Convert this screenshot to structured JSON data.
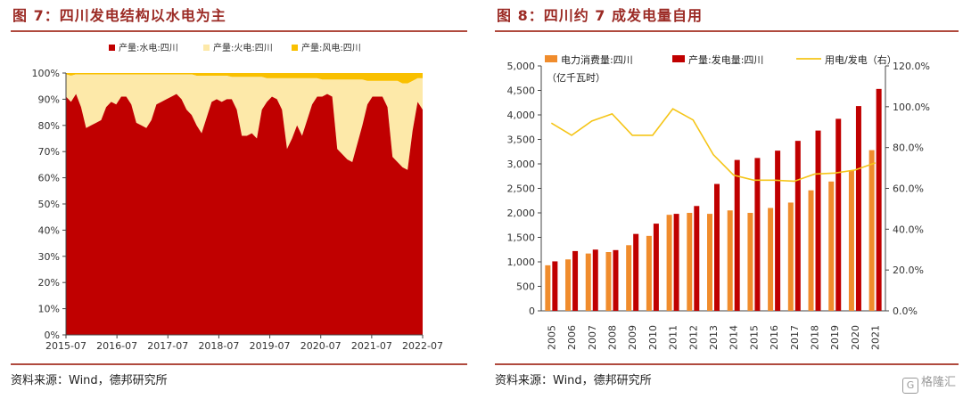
{
  "left": {
    "title": "图 7：四川发电结构以水电为主",
    "source": "资料来源：Wind，德邦研究所",
    "colors": {
      "hydro": "#c00000",
      "thermal": "#fde9a9",
      "wind": "#f9c000"
    },
    "chart_data": {
      "type": "area",
      "stacked": true,
      "percent": true,
      "title": "",
      "xlabel": "",
      "ylabel": "",
      "ylim": [
        0,
        100
      ],
      "yticks": [
        "0%",
        "10%",
        "20%",
        "30%",
        "40%",
        "50%",
        "60%",
        "70%",
        "80%",
        "90%",
        "100%"
      ],
      "xticks": [
        "2015-07",
        "2016-07",
        "2017-07",
        "2018-07",
        "2019-07",
        "2020-07",
        "2021-07",
        "2022-07"
      ],
      "series": [
        {
          "name": "产量:水电:四川",
          "values": [
            91,
            89,
            92,
            87,
            79,
            80,
            81,
            82,
            87,
            89,
            88,
            91,
            91,
            88,
            81,
            80,
            79,
            82,
            88,
            89,
            90,
            91,
            92,
            90,
            86,
            84,
            80,
            77,
            83,
            89,
            90,
            89,
            90,
            90,
            86,
            76,
            76,
            77,
            75,
            86,
            89,
            91,
            90,
            86,
            71,
            75,
            80,
            76,
            82,
            88,
            91,
            91,
            92,
            91,
            71,
            69,
            67,
            66,
            73,
            80,
            88,
            91,
            91,
            91,
            87,
            68,
            66,
            64,
            63,
            78,
            89,
            86
          ]
        },
        {
          "name": "产量:火电:四川",
          "values": [
            8.5,
            10,
            7.5,
            12.5,
            20.5,
            19.5,
            18.5,
            17.5,
            12.5,
            10.5,
            11.5,
            8.5,
            8.5,
            11.5,
            18.5,
            19.5,
            20.5,
            17.5,
            11.5,
            10.5,
            9.5,
            8.5,
            7.5,
            9.5,
            13.5,
            15.5,
            19,
            22,
            16,
            10,
            9,
            10,
            9,
            8.5,
            12.5,
            22.5,
            22.5,
            21.5,
            23.5,
            12.5,
            9,
            7,
            8,
            12,
            27,
            23,
            18,
            22,
            16,
            10,
            7,
            6.5,
            5.5,
            6.5,
            26.5,
            28.5,
            30.5,
            31.5,
            24.5,
            17.5,
            9,
            6,
            6,
            6,
            10,
            29,
            31,
            32,
            33,
            19,
            9,
            12
          ]
        },
        {
          "name": "产量:风电:四川",
          "values": [
            0.5,
            1,
            0.5,
            0.5,
            0.5,
            0.5,
            0.5,
            0.5,
            0.5,
            0.5,
            0.5,
            0.5,
            0.5,
            0.5,
            0.5,
            0.5,
            0.5,
            0.5,
            0.5,
            0.5,
            0.5,
            0.5,
            0.5,
            0.5,
            0.5,
            0.5,
            1,
            1,
            1,
            1,
            1,
            1,
            1,
            1.5,
            1.5,
            1.5,
            1.5,
            1.5,
            1.5,
            1.5,
            2,
            2,
            2,
            2,
            2,
            2,
            2,
            2,
            2,
            2,
            2,
            2.5,
            2.5,
            2.5,
            2.5,
            2.5,
            2.5,
            2.5,
            2.5,
            2.5,
            3,
            3,
            3,
            3,
            3,
            3,
            3,
            4,
            4,
            3,
            2,
            2
          ]
        }
      ]
    }
  },
  "right": {
    "title": "图 8：四川约 7 成发电量自用",
    "source": "资料来源：Wind，德邦研究所",
    "unit_label": "（亿千瓦时）",
    "colors": {
      "consumption": "#f08c2c",
      "generation": "#c00000",
      "ratio": "#f5c518"
    },
    "chart_data": {
      "type": "bar",
      "title": "",
      "xlabel": "",
      "ylabel": "亿千瓦时",
      "ylim": [
        0,
        5000
      ],
      "y2lim": [
        0,
        120
      ],
      "yticks": [
        "0",
        "500",
        "1,000",
        "1,500",
        "2,000",
        "2,500",
        "3,000",
        "3,500",
        "4,000",
        "4,500",
        "5,000"
      ],
      "y2ticks": [
        "0.0%",
        "20.0%",
        "40.0%",
        "60.0%",
        "80.0%",
        "100.0%",
        "120.0%"
      ],
      "categories": [
        "2005",
        "2006",
        "2007",
        "2008",
        "2009",
        "2010",
        "2011",
        "2012",
        "2013",
        "2014",
        "2015",
        "2016",
        "2017",
        "2018",
        "2019",
        "2020",
        "2021"
      ],
      "series": [
        {
          "name": "电力消费量:四川",
          "type": "bar",
          "axis": "left",
          "values": [
            930,
            1050,
            1170,
            1200,
            1340,
            1530,
            1960,
            2000,
            1980,
            2050,
            2000,
            2100,
            2210,
            2460,
            2640,
            2870,
            3280
          ]
        },
        {
          "name": "产量:发电量:四川",
          "type": "bar",
          "axis": "left",
          "values": [
            1010,
            1220,
            1250,
            1240,
            1570,
            1780,
            1980,
            2140,
            2590,
            3080,
            3120,
            3270,
            3470,
            3680,
            3920,
            4180,
            4530
          ]
        },
        {
          "name": "用电/发电（右）",
          "type": "line",
          "axis": "right",
          "values": [
            92,
            86,
            93,
            96.5,
            86,
            86,
            99,
            93.5,
            76.5,
            66.5,
            64,
            64,
            63.5,
            67,
            67.5,
            69,
            72.5
          ]
        }
      ]
    }
  },
  "watermark": {
    "logo": "G",
    "text": "格隆汇"
  }
}
